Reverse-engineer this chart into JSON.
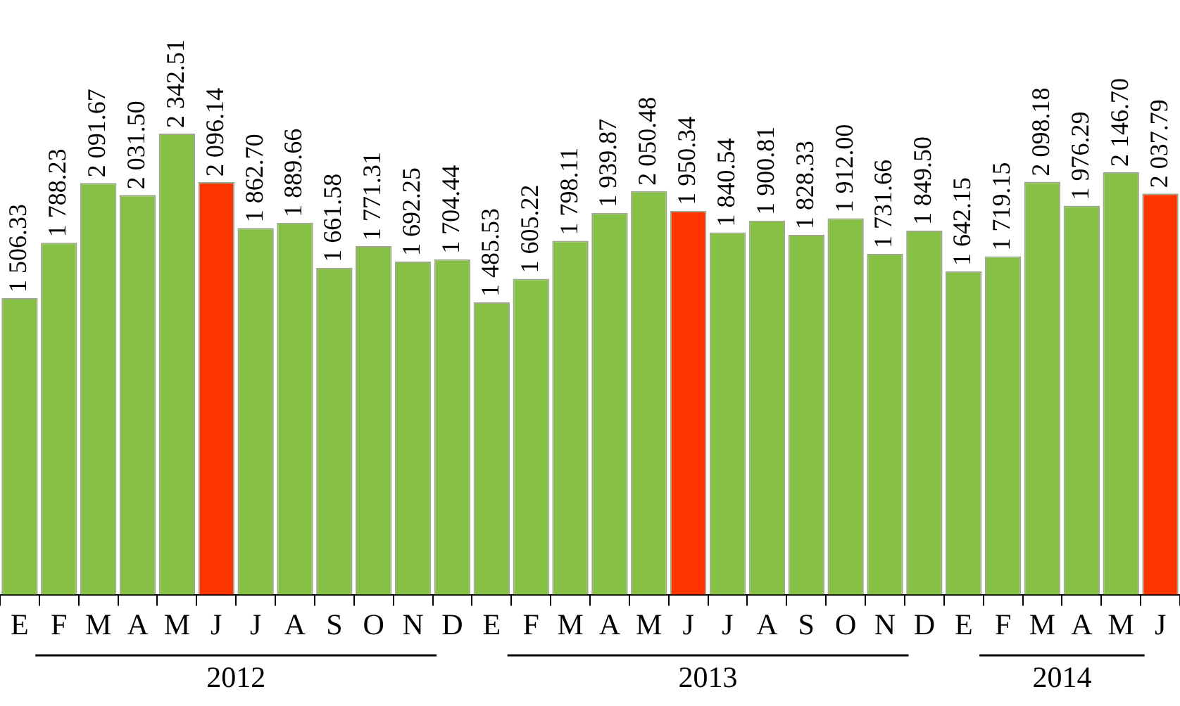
{
  "chart_data": {
    "type": "bar",
    "categories": [
      "E",
      "F",
      "M",
      "A",
      "M",
      "J",
      "J",
      "A",
      "S",
      "O",
      "N",
      "D",
      "E",
      "F",
      "M",
      "A",
      "M",
      "J",
      "J",
      "A",
      "S",
      "O",
      "N",
      "D",
      "E",
      "F",
      "M",
      "A",
      "M",
      "J"
    ],
    "values": [
      1506.33,
      1788.23,
      2091.67,
      2031.5,
      2342.51,
      2096.14,
      1862.7,
      1889.66,
      1661.58,
      1771.31,
      1692.25,
      1704.44,
      1485.53,
      1605.22,
      1798.11,
      1939.87,
      2050.48,
      1950.34,
      1840.54,
      1900.81,
      1828.33,
      1912.0,
      1731.66,
      1849.5,
      1642.15,
      1719.15,
      2098.18,
      1976.29,
      2146.7,
      2037.79
    ],
    "value_labels": [
      "1 506.33",
      "1 788.23",
      "2 091.67",
      "2 031.50",
      "2 342.51",
      "2 096.14",
      "1 862.70",
      "1 889.66",
      "1 661.58",
      "1 771.31",
      "1 692.25",
      "1 704.44",
      "1 485.53",
      "1 605.22",
      "1 798.11",
      "1 939.87",
      "2 050.48",
      "1 950.34",
      "1 840.54",
      "1 900.81",
      "1 828.33",
      "1 912.00",
      "1 731.66",
      "1 849.50",
      "1 642.15",
      "1 719.15",
      "2 098.18",
      "1 976.29",
      "2 146.70",
      "2 037.79"
    ],
    "colors": [
      "#86c044",
      "#86c044",
      "#86c044",
      "#86c044",
      "#86c044",
      "#ff3300",
      "#86c044",
      "#86c044",
      "#86c044",
      "#86c044",
      "#86c044",
      "#86c044",
      "#86c044",
      "#86c044",
      "#86c044",
      "#86c044",
      "#86c044",
      "#ff3300",
      "#86c044",
      "#86c044",
      "#86c044",
      "#86c044",
      "#86c044",
      "#86c044",
      "#86c044",
      "#86c044",
      "#86c044",
      "#86c044",
      "#86c044",
      "#ff3300"
    ],
    "annotations": [
      "2012",
      "2013",
      "2014"
    ],
    "grid": false,
    "legend": false
  }
}
